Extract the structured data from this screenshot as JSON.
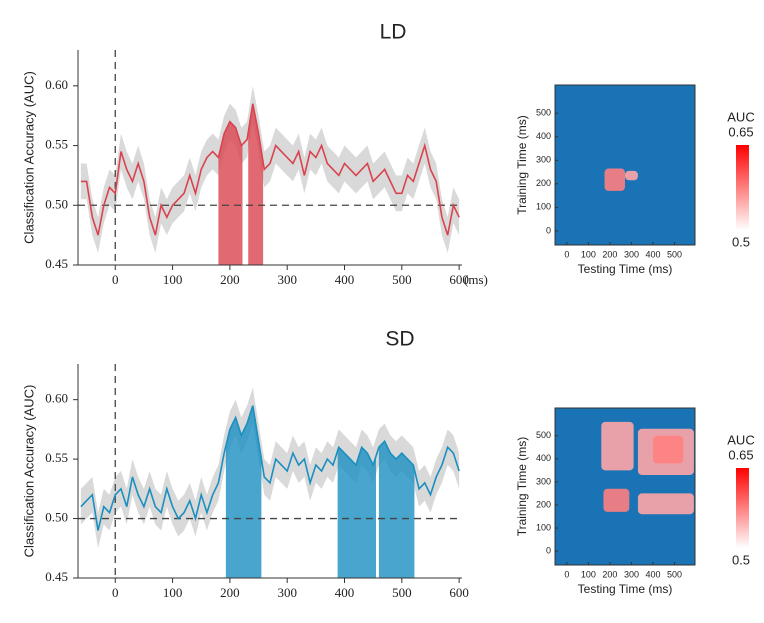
{
  "chart_data": [
    {
      "type": "line",
      "title": "LD",
      "ylabel": "Classification Accuracy (AUC)",
      "x_unit": "(ms)",
      "color": "#d9434f",
      "band_color": "#cfcfcf",
      "error": 0.015,
      "xlim": [
        -65,
        605
      ],
      "ylim": [
        0.45,
        0.63
      ],
      "xticks": [
        0,
        100,
        200,
        300,
        400,
        500,
        600
      ],
      "yticks": [
        0.45,
        {
          "value": 0.5,
          "label": "0.50"
        },
        0.55,
        {
          "value": 0.6,
          "label": "0.60"
        }
      ],
      "hline": 0.5,
      "vline": 0,
      "highlight_ranges": [
        [
          180,
          222
        ],
        [
          232,
          258
        ]
      ],
      "x": [
        -60,
        -50,
        -40,
        -30,
        -20,
        -10,
        0,
        10,
        20,
        30,
        40,
        50,
        60,
        70,
        80,
        90,
        100,
        110,
        120,
        130,
        140,
        150,
        160,
        170,
        180,
        190,
        200,
        210,
        220,
        230,
        240,
        250,
        260,
        270,
        280,
        290,
        300,
        310,
        320,
        330,
        340,
        350,
        360,
        370,
        380,
        390,
        400,
        410,
        420,
        430,
        440,
        450,
        460,
        470,
        480,
        490,
        500,
        510,
        520,
        530,
        540,
        550,
        560,
        570,
        580,
        590,
        600
      ],
      "values": [
        0.52,
        0.52,
        0.49,
        0.475,
        0.5,
        0.515,
        0.51,
        0.545,
        0.53,
        0.52,
        0.535,
        0.52,
        0.49,
        0.475,
        0.5,
        0.49,
        0.5,
        0.505,
        0.51,
        0.525,
        0.51,
        0.53,
        0.54,
        0.545,
        0.54,
        0.56,
        0.57,
        0.565,
        0.55,
        0.555,
        0.585,
        0.56,
        0.53,
        0.535,
        0.55,
        0.545,
        0.54,
        0.535,
        0.545,
        0.525,
        0.545,
        0.54,
        0.55,
        0.535,
        0.53,
        0.525,
        0.535,
        0.53,
        0.525,
        0.53,
        0.535,
        0.52,
        0.525,
        0.53,
        0.52,
        0.51,
        0.51,
        0.525,
        0.52,
        0.535,
        0.55,
        0.53,
        0.52,
        0.49,
        0.475,
        0.5,
        0.49
      ]
    },
    {
      "type": "heatmap",
      "xlabel": "Testing Time (ms)",
      "ylabel": "Training Time (ms)",
      "color": "#1a73b5",
      "xlim": [
        -55,
        595
      ],
      "ylim": [
        -60,
        620
      ],
      "xticks": [
        0,
        100,
        200,
        300,
        400,
        500
      ],
      "yticks": [
        0,
        100,
        200,
        300,
        400,
        500
      ],
      "colorbar": {
        "title": "AUC",
        "range": [
          0.5,
          0.65
        ]
      },
      "cells": [
        {
          "x": [
            175,
            270
          ],
          "y": [
            170,
            265
          ],
          "value": 0.6
        },
        {
          "x": [
            270,
            330
          ],
          "y": [
            215,
            255
          ],
          "value": 0.57
        }
      ]
    },
    {
      "type": "line",
      "title": "SD",
      "ylabel": "Classification Accuracy (AUC)",
      "color": "#1a8fc0",
      "band_color": "#cfcfcf",
      "error": 0.015,
      "xlim": [
        -65,
        605
      ],
      "ylim": [
        0.45,
        0.63
      ],
      "xticks": [
        0,
        100,
        200,
        300,
        400,
        500,
        600
      ],
      "yticks": [
        0.45,
        {
          "value": 0.5,
          "label": "0.50"
        },
        0.55,
        {
          "value": 0.6,
          "label": "0.60"
        }
      ],
      "hline": 0.5,
      "vline": 0,
      "highlight_ranges": [
        [
          193,
          255
        ],
        [
          388,
          455
        ],
        [
          460,
          522
        ]
      ],
      "x": [
        -60,
        -50,
        -40,
        -30,
        -20,
        -10,
        0,
        10,
        20,
        30,
        40,
        50,
        60,
        70,
        80,
        90,
        100,
        110,
        120,
        130,
        140,
        150,
        160,
        170,
        180,
        190,
        200,
        210,
        220,
        230,
        240,
        250,
        260,
        270,
        280,
        290,
        300,
        310,
        320,
        330,
        340,
        350,
        360,
        370,
        380,
        390,
        400,
        410,
        420,
        430,
        440,
        450,
        460,
        470,
        480,
        490,
        500,
        510,
        520,
        530,
        540,
        550,
        560,
        570,
        580,
        590,
        600
      ],
      "values": [
        0.51,
        0.515,
        0.52,
        0.49,
        0.51,
        0.505,
        0.52,
        0.525,
        0.51,
        0.535,
        0.52,
        0.51,
        0.525,
        0.51,
        0.505,
        0.525,
        0.51,
        0.5,
        0.505,
        0.515,
        0.5,
        0.52,
        0.505,
        0.52,
        0.53,
        0.555,
        0.575,
        0.585,
        0.57,
        0.58,
        0.595,
        0.565,
        0.535,
        0.53,
        0.55,
        0.545,
        0.54,
        0.555,
        0.545,
        0.55,
        0.53,
        0.545,
        0.54,
        0.55,
        0.545,
        0.56,
        0.555,
        0.55,
        0.545,
        0.56,
        0.555,
        0.545,
        0.56,
        0.565,
        0.555,
        0.55,
        0.555,
        0.55,
        0.545,
        0.525,
        0.53,
        0.52,
        0.535,
        0.545,
        0.56,
        0.555,
        0.54
      ]
    },
    {
      "type": "heatmap",
      "xlabel": "Testing Time (ms)",
      "ylabel": "Training Time (ms)",
      "color": "#1a73b5",
      "xlim": [
        -55,
        595
      ],
      "ylim": [
        -60,
        620
      ],
      "xticks": [
        0,
        100,
        200,
        300,
        400,
        500
      ],
      "yticks": [
        0,
        100,
        200,
        300,
        400,
        500
      ],
      "colorbar": {
        "title": "AUC",
        "range": [
          0.5,
          0.65
        ]
      },
      "cells": [
        {
          "x": [
            160,
            310
          ],
          "y": [
            350,
            560
          ],
          "value": 0.57
        },
        {
          "x": [
            330,
            590
          ],
          "y": [
            330,
            530
          ],
          "value": 0.57
        },
        {
          "x": [
            400,
            540
          ],
          "y": [
            380,
            500
          ],
          "value": 0.6
        },
        {
          "x": [
            170,
            290
          ],
          "y": [
            170,
            270
          ],
          "value": 0.6
        },
        {
          "x": [
            330,
            590
          ],
          "y": [
            160,
            250
          ],
          "value": 0.57
        }
      ]
    }
  ]
}
